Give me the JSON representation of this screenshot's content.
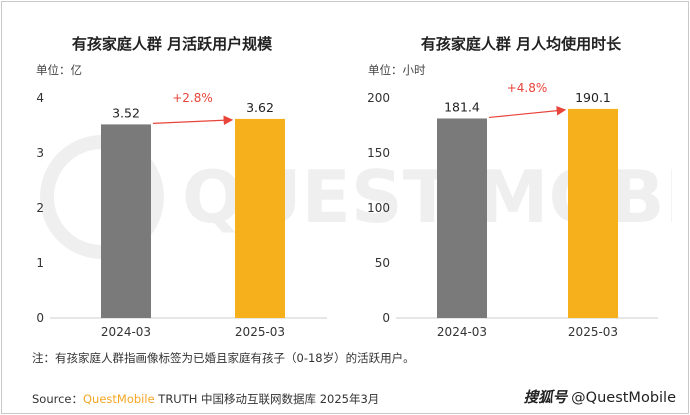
{
  "colors": {
    "bar_2024": "#7a7a7a",
    "bar_2025": "#f5b01b",
    "growth": "#e8443a",
    "axis": "#cccccc",
    "brand": "#f5a623"
  },
  "watermark_text": "QUEST MOBILE",
  "chart_data": [
    {
      "type": "bar",
      "title": "有孩家庭人群 月活跃用户规模",
      "unit": "单位：亿",
      "categories": [
        "2024-03",
        "2025-03"
      ],
      "values": [
        3.52,
        3.62
      ],
      "value_labels": [
        "3.52",
        "3.62"
      ],
      "yticks": [
        "0",
        "1",
        "2",
        "3",
        "4"
      ],
      "ylim": [
        0,
        4
      ],
      "growth_label": "+2.8%"
    },
    {
      "type": "bar",
      "title": "有孩家庭人群 月人均使用时长",
      "unit": "单位：小时",
      "categories": [
        "2024-03",
        "2025-03"
      ],
      "values": [
        181.4,
        190.1
      ],
      "value_labels": [
        "181.4",
        "190.1"
      ],
      "yticks": [
        "0",
        "50",
        "100",
        "150",
        "200"
      ],
      "ylim": [
        0,
        200
      ],
      "growth_label": "+4.8%"
    }
  ],
  "footer": {
    "note": "注：有孩家庭人群指画像标签为已婚且家庭有孩子（0-18岁）的活跃用户。",
    "source_prefix": "Source：",
    "source_brand": "QuestMobile",
    "source_rest": " TRUTH 中国移动互联网数据库 2025年3月",
    "handle_logo": "搜狐号",
    "handle": "@QuestMobile"
  }
}
